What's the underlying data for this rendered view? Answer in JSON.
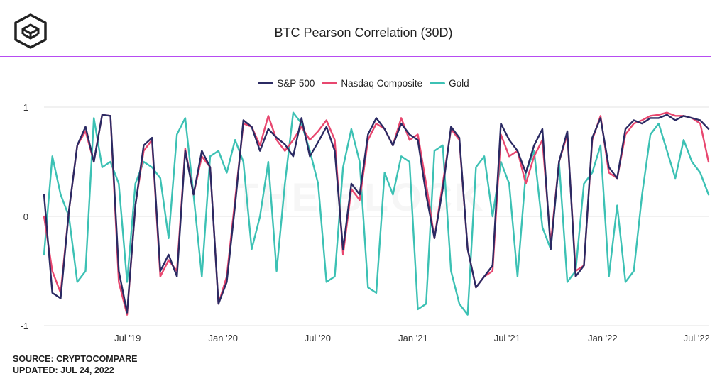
{
  "title": "BTC Pearson Correlation (30D)",
  "watermark": "THE BLOCK",
  "legend": [
    {
      "name": "S&P 500",
      "color": "#2b2a63"
    },
    {
      "name": "Nasdaq Composite",
      "color": "#e8476f"
    },
    {
      "name": "Gold",
      "color": "#3cc1b4"
    }
  ],
  "footer": {
    "source": "SOURCE: CRYPTOCOMPARE",
    "updated": "UPDATED: JUL 24, 2022"
  },
  "chart_data": {
    "type": "line",
    "title": "BTC Pearson Correlation (30D)",
    "ylim": [
      -1,
      1
    ],
    "yticks": [
      "1",
      "0",
      "-1"
    ],
    "xticks": [
      {
        "label": "Jul '19",
        "x": "2019-07"
      },
      {
        "label": "Jan '20",
        "x": "2020-01"
      },
      {
        "label": "Jul '20",
        "x": "2020-07"
      },
      {
        "label": "Jan '21",
        "x": "2021-01"
      },
      {
        "label": "Jul '21",
        "x": "2021-07"
      },
      {
        "label": "Jan '22",
        "x": "2022-01"
      },
      {
        "label": "Jul '22",
        "x": "2022-07"
      }
    ],
    "grid": "horizontal",
    "legend_position": "top",
    "x": [
      "2019-01-21",
      "2019-02-06",
      "2019-02-22",
      "2019-03-10",
      "2019-03-26",
      "2019-04-11",
      "2019-04-27",
      "2019-05-13",
      "2019-05-29",
      "2019-06-14",
      "2019-06-30",
      "2019-07-16",
      "2019-08-01",
      "2019-08-17",
      "2019-09-02",
      "2019-09-18",
      "2019-10-04",
      "2019-10-20",
      "2019-11-05",
      "2019-11-21",
      "2019-12-07",
      "2019-12-23",
      "2020-01-08",
      "2020-01-24",
      "2020-02-09",
      "2020-02-25",
      "2020-03-12",
      "2020-03-28",
      "2020-04-13",
      "2020-04-29",
      "2020-05-15",
      "2020-05-31",
      "2020-06-16",
      "2020-07-02",
      "2020-07-18",
      "2020-08-03",
      "2020-08-19",
      "2020-09-04",
      "2020-09-20",
      "2020-10-06",
      "2020-10-22",
      "2020-11-07",
      "2020-11-23",
      "2020-12-09",
      "2020-12-25",
      "2021-01-10",
      "2021-01-26",
      "2021-02-11",
      "2021-02-27",
      "2021-03-15",
      "2021-03-31",
      "2021-04-16",
      "2021-05-02",
      "2021-05-18",
      "2021-06-03",
      "2021-06-19",
      "2021-07-05",
      "2021-07-21",
      "2021-08-06",
      "2021-08-22",
      "2021-09-07",
      "2021-09-23",
      "2021-10-09",
      "2021-10-25",
      "2021-11-10",
      "2021-11-26",
      "2021-12-12",
      "2021-12-28",
      "2022-01-13",
      "2022-01-29",
      "2022-02-14",
      "2022-03-02",
      "2022-03-18",
      "2022-04-03",
      "2022-04-19",
      "2022-05-05",
      "2022-05-21",
      "2022-06-06",
      "2022-06-22",
      "2022-07-08",
      "2022-07-24"
    ],
    "series": [
      {
        "name": "S&P 500",
        "color": "#2b2a63",
        "values": [
          0.2,
          -0.7,
          -0.75,
          0.05,
          0.65,
          0.82,
          0.5,
          0.93,
          0.92,
          -0.5,
          -0.88,
          0.1,
          0.65,
          0.72,
          -0.5,
          -0.35,
          -0.55,
          0.6,
          0.2,
          0.6,
          0.45,
          -0.8,
          -0.6,
          0.1,
          0.88,
          0.82,
          0.6,
          0.8,
          0.72,
          0.66,
          0.55,
          0.9,
          0.55,
          0.68,
          0.82,
          0.6,
          -0.3,
          0.3,
          0.2,
          0.75,
          0.9,
          0.8,
          0.65,
          0.85,
          0.75,
          0.7,
          0.2,
          -0.2,
          0.25,
          0.82,
          0.72,
          -0.3,
          -0.65,
          -0.55,
          -0.45,
          0.85,
          0.7,
          0.6,
          0.4,
          0.65,
          0.8,
          -0.3,
          0.5,
          0.78,
          -0.55,
          -0.45,
          0.72,
          0.9,
          0.45,
          0.35,
          0.8,
          0.88,
          0.85,
          0.9,
          0.9,
          0.93,
          0.88,
          0.92,
          0.9,
          0.88,
          0.8
        ]
      },
      {
        "name": "Nasdaq Composite",
        "color": "#e8476f",
        "values": [
          0.0,
          -0.5,
          -0.7,
          0.05,
          0.65,
          0.78,
          0.5,
          0.93,
          0.92,
          -0.6,
          -0.9,
          0.1,
          0.6,
          0.7,
          -0.55,
          -0.4,
          -0.5,
          0.62,
          0.2,
          0.55,
          0.45,
          -0.8,
          -0.55,
          0.15,
          0.85,
          0.82,
          0.65,
          0.92,
          0.7,
          0.6,
          0.7,
          0.82,
          0.7,
          0.78,
          0.88,
          0.7,
          -0.35,
          0.25,
          0.15,
          0.7,
          0.85,
          0.8,
          0.65,
          0.9,
          0.7,
          0.75,
          0.3,
          -0.2,
          0.3,
          0.8,
          0.7,
          -0.3,
          -0.65,
          -0.55,
          -0.5,
          0.75,
          0.55,
          0.6,
          0.3,
          0.55,
          0.7,
          -0.25,
          0.5,
          0.75,
          -0.5,
          -0.45,
          0.7,
          0.92,
          0.4,
          0.35,
          0.75,
          0.85,
          0.88,
          0.92,
          0.93,
          0.95,
          0.92,
          0.92,
          0.9,
          0.85,
          0.5
        ]
      },
      {
        "name": "Gold",
        "color": "#3cc1b4",
        "values": [
          -0.35,
          0.55,
          0.2,
          0.0,
          -0.6,
          -0.5,
          0.9,
          0.45,
          0.5,
          0.3,
          -0.6,
          0.3,
          0.5,
          0.45,
          0.35,
          -0.2,
          0.75,
          0.9,
          0.2,
          -0.55,
          0.55,
          0.6,
          0.4,
          0.7,
          0.5,
          -0.3,
          0.0,
          0.5,
          -0.5,
          0.3,
          0.95,
          0.85,
          0.6,
          0.3,
          -0.6,
          -0.55,
          0.45,
          0.8,
          0.5,
          -0.65,
          -0.7,
          0.4,
          0.2,
          0.55,
          0.5,
          -0.85,
          -0.8,
          0.6,
          0.65,
          -0.5,
          -0.8,
          -0.9,
          0.45,
          0.55,
          0.0,
          0.5,
          0.3,
          -0.55,
          0.4,
          0.6,
          -0.1,
          -0.3,
          0.5,
          -0.6,
          -0.5,
          0.3,
          0.4,
          0.65,
          -0.55,
          0.1,
          -0.6,
          -0.5,
          0.2,
          0.75,
          0.85,
          0.6,
          0.35,
          0.7,
          0.5,
          0.4,
          0.2
        ]
      }
    ]
  }
}
